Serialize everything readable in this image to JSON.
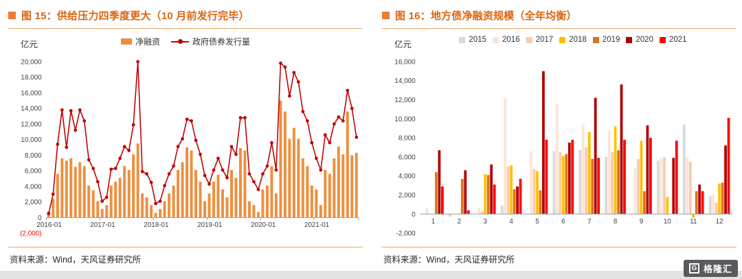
{
  "figure15": {
    "title": "图 15：供给压力四季度更大（10 月前发行完毕）",
    "unit": "亿元",
    "source": "资料来源：Wind，天风证券研究所"
  },
  "figure16": {
    "title": "图 16：地方债净融资规模（全年均衡）",
    "unit": "亿元",
    "source": "资料来源：Wind，天风证券研究所"
  },
  "logo": {
    "icon_letter": "G",
    "brand": "格隆汇"
  },
  "colors": {
    "accent_title": "#DC650D",
    "bullet": "#ED7D31",
    "divider": "#F0A868",
    "bar_orange": "#EE8F3F",
    "line_red": "#C00000",
    "negative_tick_red": "#FF0000"
  },
  "chart_data": [
    {
      "id": "figure-15-chart",
      "type": "bar+line",
      "title": "供给压力四季度更大（10月前发行完毕）",
      "unit": "亿元",
      "ylim": [
        -2000,
        20000
      ],
      "ytick_step": 2000,
      "negative_tick_format": "parentheses-red",
      "x_axis_tick_labels": [
        "2016-01",
        "2017-01",
        "2018-01",
        "2019-01",
        "2020-01",
        "2021-01"
      ],
      "x": [
        "2016-01",
        "2016-02",
        "2016-03",
        "2016-04",
        "2016-05",
        "2016-06",
        "2016-07",
        "2016-08",
        "2016-09",
        "2016-10",
        "2016-11",
        "2016-12",
        "2017-01",
        "2017-02",
        "2017-03",
        "2017-04",
        "2017-05",
        "2017-06",
        "2017-07",
        "2017-08",
        "2017-09",
        "2017-10",
        "2017-11",
        "2017-12",
        "2018-01",
        "2018-02",
        "2018-03",
        "2018-04",
        "2018-05",
        "2018-06",
        "2018-07",
        "2018-08",
        "2018-09",
        "2018-10",
        "2018-11",
        "2018-12",
        "2019-01",
        "2019-02",
        "2019-03",
        "2019-04",
        "2019-05",
        "2019-06",
        "2019-07",
        "2019-08",
        "2019-09",
        "2019-10",
        "2019-11",
        "2019-12",
        "2020-01",
        "2020-02",
        "2020-03",
        "2020-04",
        "2020-05",
        "2020-06",
        "2020-07",
        "2020-08",
        "2020-09",
        "2020-10",
        "2020-11",
        "2020-12",
        "2021-01",
        "2021-02",
        "2021-03",
        "2021-04",
        "2021-05",
        "2021-06",
        "2021-07",
        "2021-08",
        "2021-09",
        "2021-10"
      ],
      "series": [
        {
          "name": "净融资",
          "type": "bar",
          "color": "#EE8F3F",
          "values": [
            800,
            2400,
            5600,
            7600,
            7300,
            7600,
            6500,
            7100,
            6600,
            4100,
            3500,
            2100,
            1100,
            1600,
            4100,
            4600,
            5100,
            6600,
            6100,
            8100,
            9500,
            3100,
            2600,
            1600,
            600,
            1100,
            2100,
            3100,
            4100,
            6100,
            7100,
            9000,
            8600,
            6100,
            4600,
            2100,
            3100,
            4600,
            5500,
            3600,
            2600,
            6100,
            5100,
            8900,
            8600,
            2100,
            1600,
            700,
            3600,
            4100,
            6600,
            3100,
            15000,
            13600,
            10100,
            11500,
            10100,
            7600,
            6600,
            4100,
            3600,
            1600,
            6100,
            5600,
            7600,
            9100,
            8100,
            13600,
            8000,
            8300
          ]
        },
        {
          "name": "政府债券发行量",
          "type": "line",
          "color": "#C00000",
          "values": [
            500,
            3000,
            9400,
            13800,
            9000,
            13700,
            11200,
            13800,
            12400,
            7400,
            6300,
            4600,
            2100,
            2600,
            6200,
            6300,
            7600,
            9100,
            8600,
            11900,
            20000,
            5900,
            5600,
            4500,
            1800,
            2100,
            4100,
            5600,
            6600,
            9100,
            10100,
            12600,
            12400,
            9900,
            8100,
            5400,
            4300,
            6100,
            7600,
            6100,
            5100,
            9100,
            8100,
            12800,
            12800,
            5600,
            4600,
            3600,
            5600,
            6600,
            9600,
            6100,
            19800,
            19300,
            15600,
            18600,
            17400,
            13600,
            12400,
            9600,
            7600,
            6100,
            10600,
            9600,
            12000,
            12900,
            12400,
            16300,
            14000,
            10300
          ]
        }
      ],
      "legend_position": "top"
    },
    {
      "id": "figure-16-chart",
      "type": "bar",
      "grouped": true,
      "title": "地方债净融资规模（全年均衡）",
      "unit": "亿元",
      "ylim": [
        -2000,
        16000
      ],
      "ytick_step": 2000,
      "negative_tick_format": "minus",
      "categories": [
        "1",
        "2",
        "3",
        "4",
        "5",
        "6",
        "7",
        "8",
        "9",
        "10",
        "11",
        "12"
      ],
      "series": [
        {
          "name": "2015",
          "type": "bar",
          "color": "#D9D9D9",
          "values": [
            0,
            -300,
            0,
            900,
            0,
            6600,
            6700,
            6000,
            0,
            5600,
            9400,
            1900
          ]
        },
        {
          "name": "2016",
          "type": "bar",
          "color": "#FBE5D6",
          "values": [
            600,
            0,
            700,
            12200,
            6600,
            11500,
            9400,
            8700,
            4800,
            5900,
            6000,
            2100
          ]
        },
        {
          "name": "2017",
          "type": "bar",
          "color": "#F8CBAD",
          "values": [
            0,
            0,
            300,
            5000,
            4700,
            6500,
            7000,
            6500,
            5800,
            6000,
            5500,
            1200
          ]
        },
        {
          "name": "2018",
          "type": "bar",
          "color": "#FFC000",
          "values": [
            0,
            0,
            4200,
            5100,
            4500,
            6100,
            8600,
            9200,
            7700,
            1800,
            -400,
            3200
          ]
        },
        {
          "name": "2019",
          "type": "bar",
          "color": "#D9751E",
          "values": [
            4400,
            3700,
            4100,
            2600,
            2500,
            6300,
            5800,
            6700,
            2400,
            0,
            2400,
            3300
          ]
        },
        {
          "name": "2020",
          "type": "bar",
          "color": "#B00000",
          "values": [
            6700,
            4600,
            5200,
            2900,
            15000,
            7500,
            12200,
            13600,
            9300,
            5900,
            3100,
            7200
          ]
        },
        {
          "name": "2021",
          "type": "bar",
          "color": "#FF0000",
          "values": [
            2900,
            400,
            3100,
            3700,
            7800,
            7800,
            5900,
            7800,
            8000,
            7700,
            2400,
            10100
          ]
        }
      ],
      "legend_position": "top"
    }
  ]
}
